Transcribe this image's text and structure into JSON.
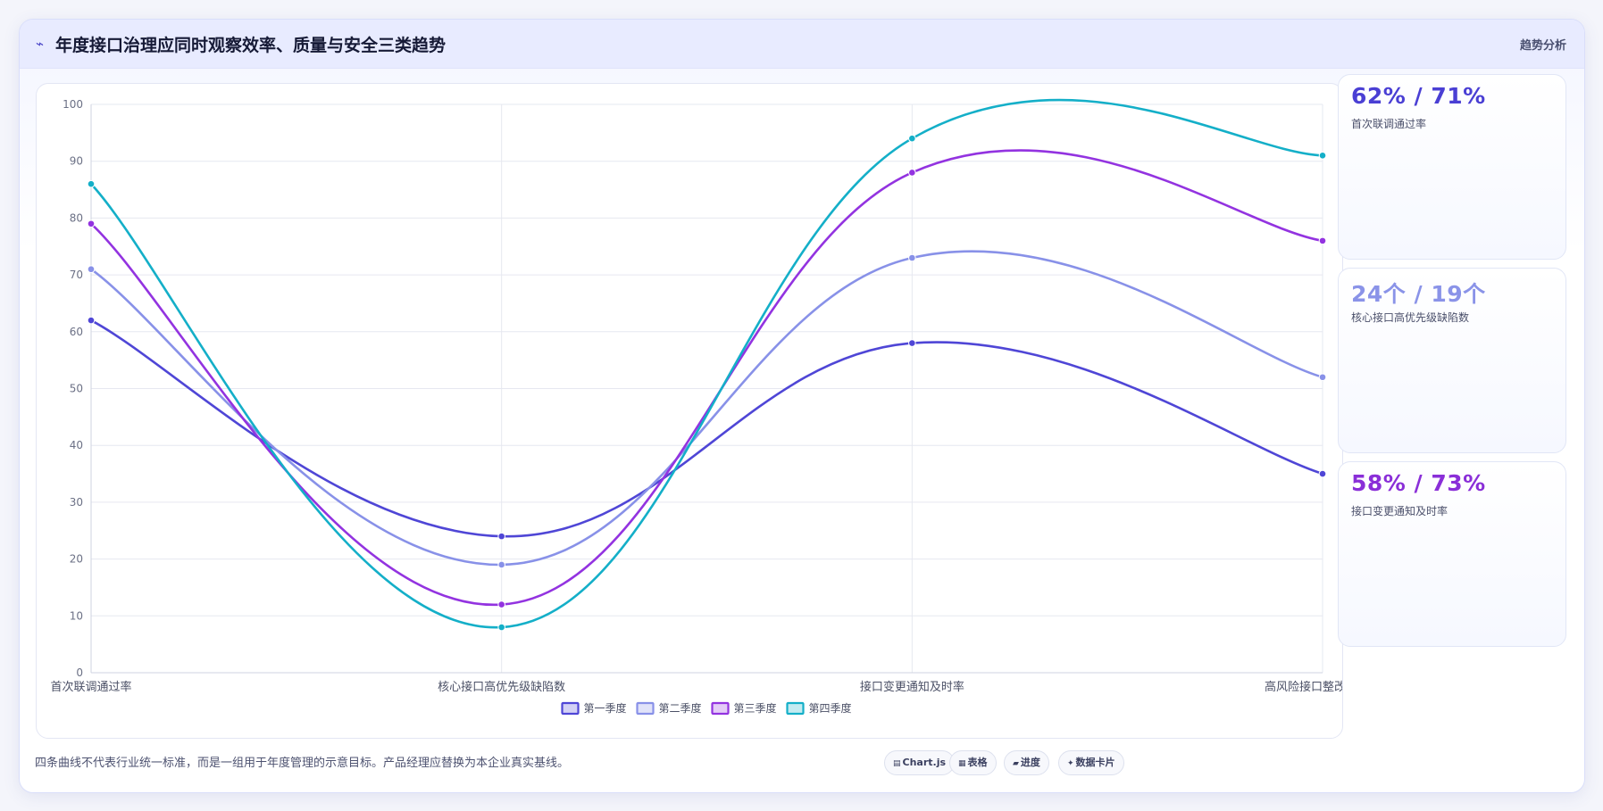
{
  "header": {
    "icon": "trend-line-icon",
    "title": "年度接口治理应同时观察效率、质量与安全三类趋势",
    "right_label": "趋势分析"
  },
  "chart_data": {
    "type": "line",
    "categories": [
      "首次联调通过率",
      "核心接口高优先级缺陷数",
      "接口变更通知及时率",
      "高风险接口整改完成率"
    ],
    "ylim": [
      0,
      100
    ],
    "yticks": [
      0,
      10,
      20,
      30,
      40,
      50,
      60,
      70,
      80,
      90,
      100
    ],
    "grid": true,
    "legend_position": "bottom",
    "smooth": true,
    "series": [
      {
        "name": "第一季度",
        "values": [
          62,
          24,
          58,
          35
        ],
        "color": "#4f46d6"
      },
      {
        "name": "第二季度",
        "values": [
          71,
          19,
          73,
          52
        ],
        "color": "#8891e8"
      },
      {
        "name": "第三季度",
        "values": [
          79,
          12,
          88,
          76
        ],
        "color": "#9333e0"
      },
      {
        "name": "第四季度",
        "values": [
          86,
          8,
          94,
          91
        ],
        "color": "#14afc8"
      }
    ]
  },
  "kpis": [
    {
      "value": "62% / 71%",
      "label": "首次联调通过率",
      "color": "#4a3fd4"
    },
    {
      "value": "24个 / 19个",
      "label": "核心接口高优先级缺陷数",
      "color": "#8a93e8"
    },
    {
      "value": "58% / 73%",
      "label": "接口变更通知及时率",
      "color": "#8a2fd8"
    }
  ],
  "footer": {
    "note": "四条曲线不代表行业统一标准，而是一组用于年度管理的示意目标。产品经理应替换为本企业真实基线。",
    "chips": [
      {
        "icon": "chart-icon",
        "glyph": "▤",
        "label": "Chart.js"
      },
      {
        "icon": "table-icon",
        "glyph": "▦",
        "label": "表格"
      },
      {
        "icon": "progress-icon",
        "glyph": "▰",
        "label": "进度"
      },
      {
        "icon": "sparkle-icon",
        "glyph": "✦",
        "label": "数据卡片"
      }
    ]
  }
}
